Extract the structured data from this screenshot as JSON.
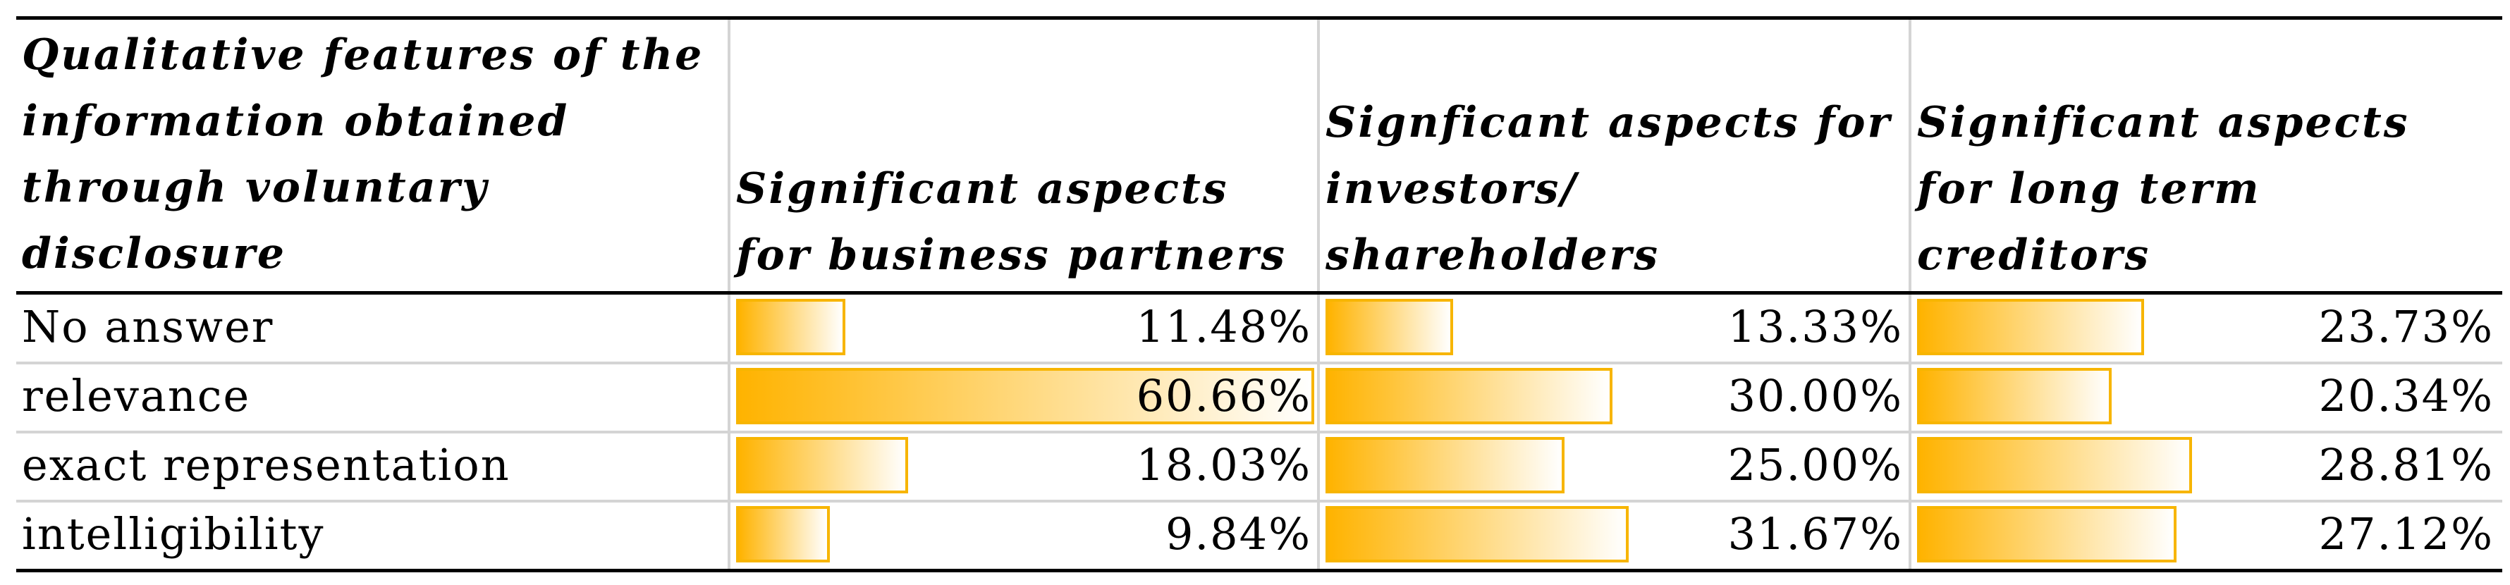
{
  "table": {
    "header": [
      "Qualitative features of the information obtained through voluntary disclosure",
      "Significant aspects for business partners",
      " Signficant aspects for investors/ shareholders",
      "Significant aspects for long term creditors"
    ],
    "rows": [
      {
        "label": "No answer",
        "cells": [
          {
            "value": 11.48,
            "label": "11.48%"
          },
          {
            "value": 13.33,
            "label": "13.33%"
          },
          {
            "value": 23.73,
            "label": "23.73%"
          }
        ]
      },
      {
        "label": "relevance",
        "cells": [
          {
            "value": 60.66,
            "label": "60.66%"
          },
          {
            "value": 30.0,
            "label": "30.00%"
          },
          {
            "value": 20.34,
            "label": "20.34%"
          }
        ]
      },
      {
        "label": "exact representation",
        "cells": [
          {
            "value": 18.03,
            "label": "18.03%"
          },
          {
            "value": 25.0,
            "label": "25.00%"
          },
          {
            "value": 28.81,
            "label": "28.81%"
          }
        ]
      },
      {
        "label": "intelligibility",
        "cells": [
          {
            "value": 9.84,
            "label": "9.84%"
          },
          {
            "value": 31.67,
            "label": "31.67%"
          },
          {
            "value": 27.12,
            "label": "27.12%"
          }
        ]
      }
    ]
  }
}
